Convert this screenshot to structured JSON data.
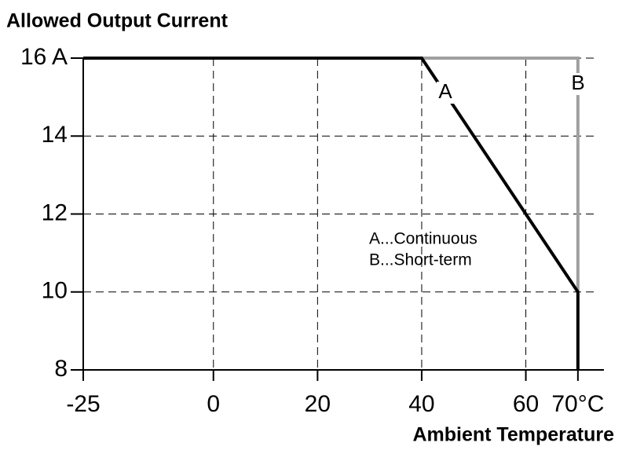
{
  "chart_data": {
    "type": "line",
    "title": "Allowed Output Current",
    "x_label": "Ambient Temperature",
    "xlim": [
      -25,
      75
    ],
    "ylim": [
      8,
      16
    ],
    "xticks": [
      -25,
      0,
      20,
      40,
      60,
      {
        "value": 70,
        "label": "70°C"
      }
    ],
    "yticks": [
      8,
      10,
      12,
      14,
      {
        "value": 16,
        "label": "16 A"
      }
    ],
    "grid": true,
    "series": [
      {
        "name": "B",
        "color": "#a0a0a0",
        "x": [
          -25,
          70,
          70
        ],
        "values": [
          16,
          16,
          10
        ]
      },
      {
        "name": "A",
        "color": "#000000",
        "x": [
          -25,
          40,
          70,
          70
        ],
        "values": [
          16,
          16,
          10,
          8
        ]
      }
    ],
    "annotations": [
      "A...Continuous",
      "B...Short-term"
    ]
  }
}
